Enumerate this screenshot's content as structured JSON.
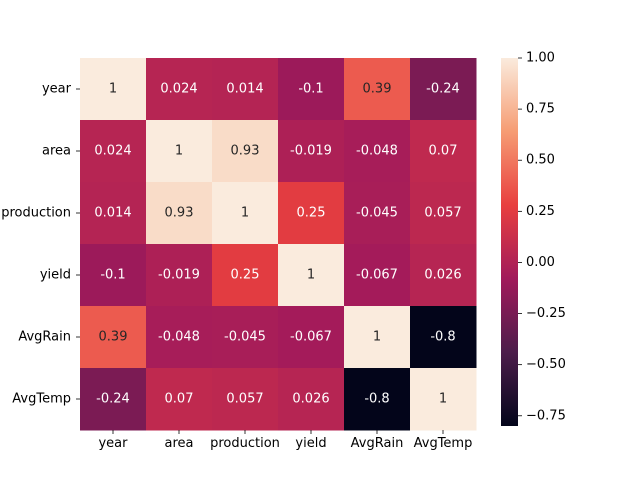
{
  "chart_data": {
    "type": "heatmap",
    "title": "",
    "xlabel": "",
    "ylabel": "",
    "x_categories": [
      "year",
      "area",
      "production",
      "yield",
      "AvgRain",
      "AvgTemp"
    ],
    "y_categories": [
      "year",
      "area",
      "production",
      "yield",
      "AvgRain",
      "AvgTemp"
    ],
    "values": [
      [
        1,
        0.024,
        0.014,
        -0.1,
        0.39,
        -0.24
      ],
      [
        0.024,
        1,
        0.93,
        -0.019,
        -0.048,
        0.07
      ],
      [
        0.014,
        0.93,
        1,
        0.25,
        -0.045,
        0.057
      ],
      [
        -0.1,
        -0.019,
        0.25,
        1,
        -0.067,
        0.026
      ],
      [
        0.39,
        -0.048,
        -0.045,
        -0.067,
        1,
        -0.8
      ],
      [
        -0.24,
        0.07,
        0.057,
        0.026,
        -0.8,
        1
      ]
    ],
    "annotations": [
      [
        "1",
        "0.024",
        "0.014",
        "-0.1",
        "0.39",
        "-0.24"
      ],
      [
        "0.024",
        "1",
        "0.93",
        "-0.019",
        "-0.048",
        "0.07"
      ],
      [
        "0.014",
        "0.93",
        "1",
        "0.25",
        "-0.045",
        "0.057"
      ],
      [
        "-0.1",
        "-0.019",
        "0.25",
        "1",
        "-0.067",
        "0.026"
      ],
      [
        "0.39",
        "-0.048",
        "-0.045",
        "-0.067",
        "1",
        "-0.8"
      ],
      [
        "-0.24",
        "0.07",
        "0.057",
        "0.026",
        "-0.8",
        "1"
      ]
    ],
    "colorbar": {
      "min": -0.8,
      "max": 1,
      "ticks": [
        1.0,
        0.75,
        0.5,
        0.25,
        0.0,
        -0.25,
        -0.5,
        -0.75
      ],
      "tick_labels": [
        "1.00",
        "0.75",
        "0.50",
        "0.25",
        "0.00",
        "−0.25",
        "−0.50",
        "−0.75"
      ],
      "colormap": "rocket",
      "colormap_stops": [
        "#03051a",
        "#4c1d4b",
        "#a11a5b",
        "#e83f3f",
        "#f69c73",
        "#faebdd"
      ]
    },
    "grid": false,
    "legend": "colorbar-right"
  }
}
